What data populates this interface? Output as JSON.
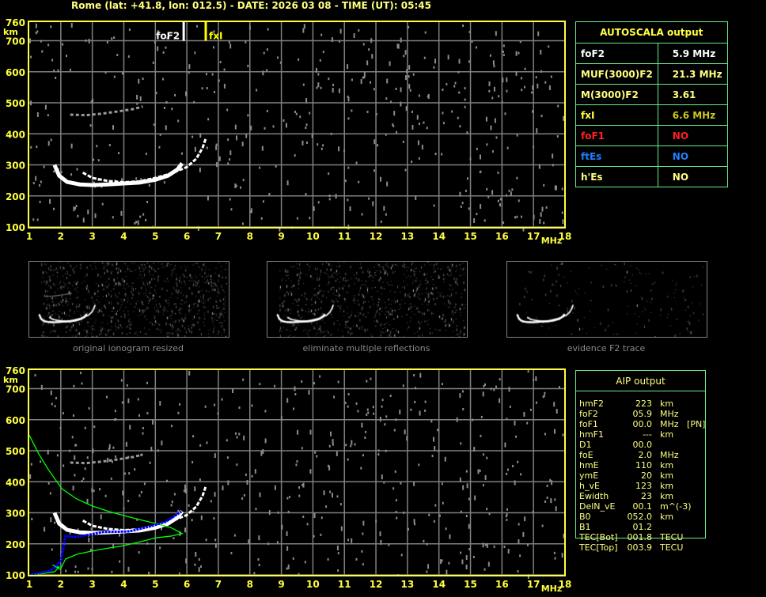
{
  "title": "Rome (lat: +41.8, lon: 012.5) - DATE: 2026 03 08 - TIME (UT): 05:45",
  "colors": {
    "axis": "#ffff40",
    "grid": "#808080",
    "trace": "#ffffff",
    "noise": "#8c8c8c",
    "profile": "#00ff00",
    "aip_trace": "#0000ff",
    "panel_border": "#66ee88"
  },
  "thumbnails": [
    {
      "caption": "original ionogram resized"
    },
    {
      "caption": "eliminate multiple reflections"
    },
    {
      "caption": "evidence F2 trace"
    }
  ],
  "autoscala": {
    "title": "AUTOSCALA output",
    "rows": [
      {
        "label": "foF2",
        "value": "5.9 MHz",
        "label_color": "#ffffff",
        "value_color": "#ffffff"
      },
      {
        "label": "MUF(3000)F2",
        "value": "21.3 MHz",
        "label_color": "#ffff80",
        "value_color": "#ffff80"
      },
      {
        "label": "M(3000)F2",
        "value": "3.61",
        "label_color": "#ffff80",
        "value_color": "#ffff80"
      },
      {
        "label": "fxI",
        "value": "6.6 MHz",
        "label_color": "#ffff40",
        "value_color": "#c8c820"
      },
      {
        "label": "foF1",
        "value": "NO",
        "label_color": "#ff2020",
        "value_color": "#ff2020"
      },
      {
        "label": "ftEs",
        "value": "NO",
        "label_color": "#2080ff",
        "value_color": "#2080ff"
      },
      {
        "label": "h'Es",
        "value": "NO",
        "label_color": "#ffff80",
        "value_color": "#ffff80"
      }
    ]
  },
  "aip": {
    "title": "AIP output",
    "rows": [
      [
        "hmF2",
        "223",
        "km"
      ],
      [
        "foF2",
        "05.9",
        "MHz"
      ],
      [
        "foF1",
        "00.0",
        "MHz   [PN]"
      ],
      [
        "hmF1",
        "---",
        "km"
      ],
      [
        "D1",
        "00.0",
        ""
      ],
      [
        "foE",
        "2.0",
        "MHz"
      ],
      [
        "hmE",
        "110",
        "km"
      ],
      [
        "ymE",
        "20",
        "km"
      ],
      [
        "h_vE",
        "123",
        "km"
      ],
      [
        "Ewidth",
        "23",
        "km"
      ],
      [
        "DelN_vE",
        "00.1",
        "m^(-3)"
      ],
      [
        "B0",
        "052.0",
        "km"
      ],
      [
        "B1",
        "01.2",
        ""
      ],
      [
        "TEC[Bot]",
        "001.8",
        "TECU"
      ],
      [
        "TEC[Top]",
        "003.9",
        "TECU"
      ]
    ]
  },
  "chart_data": [
    {
      "type": "scatter",
      "title": "",
      "xlabel": "MHz",
      "ylabel": "km",
      "xlim": [
        1,
        18
      ],
      "ylim": [
        100,
        760
      ],
      "grid": true,
      "x_ticks": [
        "1",
        "2",
        "3",
        "4",
        "5",
        "6",
        "7",
        "8",
        "9",
        "10",
        "11",
        "12",
        "13",
        "14",
        "15",
        "16",
        "17",
        "18"
      ],
      "y_ticks": [
        "100",
        "200",
        "300",
        "400",
        "500",
        "600",
        "700",
        "760"
      ],
      "markers": [
        {
          "name": "foF2",
          "freq": 5.9,
          "color": "#ffffff"
        },
        {
          "name": "fxI",
          "freq": 6.6,
          "color": "#ffff00"
        }
      ],
      "o_trace": [
        [
          1.8,
          300
        ],
        [
          1.95,
          265
        ],
        [
          2.2,
          245
        ],
        [
          2.6,
          237
        ],
        [
          3,
          235
        ],
        [
          3.5,
          237
        ],
        [
          4,
          240
        ],
        [
          4.5,
          243
        ],
        [
          5,
          252
        ],
        [
          5.4,
          265
        ],
        [
          5.7,
          285
        ],
        [
          5.85,
          305
        ]
      ],
      "x_trace": [
        [
          2.7,
          275
        ],
        [
          3,
          258
        ],
        [
          3.5,
          248
        ],
        [
          4,
          244
        ],
        [
          4.5,
          247
        ],
        [
          5,
          258
        ],
        [
          5.5,
          272
        ],
        [
          6,
          293
        ],
        [
          6.3,
          320
        ],
        [
          6.5,
          355
        ],
        [
          6.6,
          385
        ]
      ],
      "second_hop": [
        [
          2.3,
          462
        ],
        [
          2.8,
          460
        ],
        [
          3.3,
          465
        ],
        [
          3.8,
          472
        ],
        [
          4.3,
          480
        ],
        [
          4.6,
          488
        ]
      ]
    },
    {
      "type": "scatter",
      "title": "",
      "xlabel": "MHz",
      "ylabel": "km",
      "xlim": [
        1,
        18
      ],
      "ylim": [
        100,
        760
      ],
      "grid": true,
      "x_ticks": [
        "1",
        "2",
        "3",
        "4",
        "5",
        "6",
        "7",
        "8",
        "9",
        "10",
        "11",
        "12",
        "13",
        "14",
        "15",
        "16",
        "17",
        "18"
      ],
      "y_ticks": [
        "100",
        "200",
        "300",
        "400",
        "500",
        "600",
        "700",
        "760"
      ],
      "o_trace": [
        [
          1.8,
          300
        ],
        [
          1.95,
          265
        ],
        [
          2.2,
          245
        ],
        [
          2.6,
          237
        ],
        [
          3,
          235
        ],
        [
          3.5,
          237
        ],
        [
          4,
          240
        ],
        [
          4.5,
          243
        ],
        [
          5,
          252
        ],
        [
          5.4,
          265
        ],
        [
          5.7,
          285
        ],
        [
          5.85,
          305
        ]
      ],
      "x_trace": [
        [
          2.7,
          275
        ],
        [
          3,
          258
        ],
        [
          3.5,
          248
        ],
        [
          4,
          244
        ],
        [
          4.5,
          247
        ],
        [
          5,
          258
        ],
        [
          5.5,
          272
        ],
        [
          6,
          293
        ],
        [
          6.3,
          320
        ],
        [
          6.5,
          355
        ],
        [
          6.6,
          385
        ]
      ],
      "second_hop": [
        [
          2.3,
          462
        ],
        [
          2.8,
          460
        ],
        [
          3.3,
          465
        ],
        [
          3.8,
          472
        ],
        [
          4.3,
          480
        ],
        [
          4.6,
          488
        ]
      ],
      "density_profile": [
        [
          1,
          550
        ],
        [
          1.3,
          490
        ],
        [
          1.6,
          440
        ],
        [
          2.03,
          378
        ],
        [
          2.5,
          345
        ],
        [
          3,
          322
        ],
        [
          3.5,
          305
        ],
        [
          4,
          291
        ],
        [
          4.5,
          278
        ],
        [
          5,
          266
        ],
        [
          5.5,
          252
        ],
        [
          5.85,
          233
        ],
        [
          5.5,
          225
        ],
        [
          5,
          219
        ],
        [
          4.5,
          206
        ],
        [
          4,
          194
        ],
        [
          3.5,
          186
        ],
        [
          3,
          177
        ],
        [
          2.5,
          166
        ],
        [
          2.15,
          151
        ],
        [
          1.99,
          118
        ],
        [
          1.74,
          131
        ],
        [
          1.95,
          125
        ],
        [
          1.8,
          110
        ],
        [
          1.4,
          104
        ],
        [
          1,
          100
        ]
      ],
      "aip_trace": [
        [
          1,
          100
        ],
        [
          1.67,
          113
        ],
        [
          2,
          143
        ],
        [
          2.15,
          225
        ],
        [
          2.5,
          222
        ],
        [
          3.33,
          238
        ],
        [
          4.17,
          240
        ],
        [
          4.83,
          256
        ],
        [
          5.33,
          271
        ],
        [
          5.83,
          304
        ]
      ]
    }
  ]
}
